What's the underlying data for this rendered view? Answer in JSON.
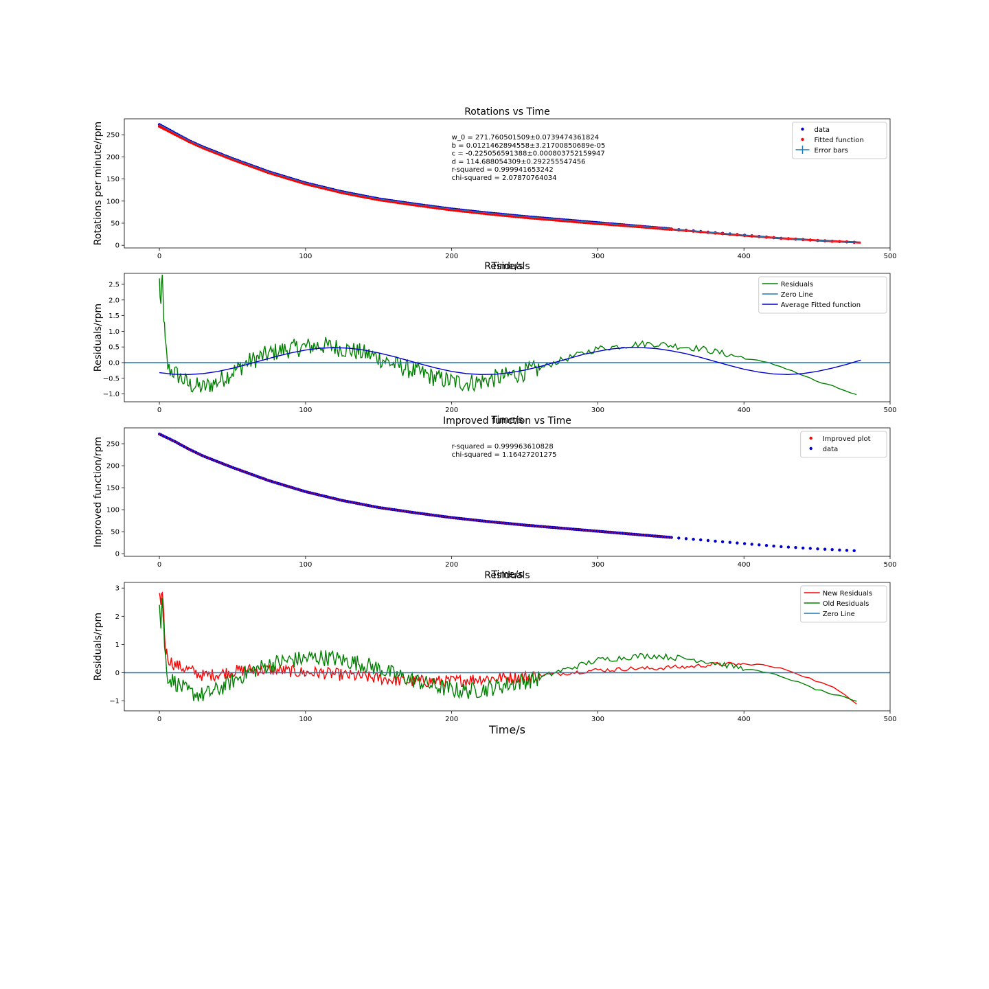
{
  "chart_data": [
    {
      "type": "scatter",
      "title": "Rotations vs Time",
      "xlabel": "Time/s",
      "ylabel": "Rotations per minute/rpm",
      "xlim": [
        -24,
        500
      ],
      "ylim": [
        -6,
        286
      ],
      "xticks": [
        0,
        100,
        200,
        300,
        400,
        500
      ],
      "yticks": [
        0,
        50,
        100,
        150,
        200,
        250
      ],
      "legend_position": "top-right",
      "legend": [
        {
          "label": "data",
          "marker": "dot",
          "color": "#0000cc"
        },
        {
          "label": "Fitted function",
          "marker": "dot",
          "color": "#ff0000"
        },
        {
          "label": "Error bars",
          "marker": "errorbar",
          "color": "#1f77b4"
        }
      ],
      "annotation": [
        "w_0 = 271.760501509±0.0739474361824",
        "b = 0.0121462894558±3.21700850689e-05",
        "c = -0.225056591388±0.000803752159947",
        "d = 114.688054309±0.292255547456",
        "r-squared = 0.999941653242",
        "chi-squared = 2.07870764034"
      ],
      "series": [
        {
          "name": "data",
          "x": [
            0,
            10,
            20,
            30,
            50,
            75,
            100,
            125,
            150,
            175,
            200,
            225,
            250,
            275,
            300,
            325,
            350,
            375,
            400,
            425,
            450,
            480
          ],
          "values": [
            273,
            255,
            237,
            222,
            196,
            166,
            141,
            121,
            105,
            93,
            82,
            73,
            65,
            58,
            51,
            44,
            37,
            30,
            23,
            16,
            11,
            6
          ]
        },
        {
          "name": "Fitted function",
          "x": [
            0,
            10,
            20,
            30,
            50,
            75,
            100,
            125,
            150,
            175,
            200,
            225,
            250,
            275,
            300,
            325,
            350,
            375,
            400,
            425,
            450,
            480
          ],
          "values": [
            269,
            252,
            235,
            220,
            194,
            164,
            139,
            119,
            103,
            91,
            80,
            71,
            63,
            56,
            49,
            43,
            36,
            29,
            22,
            16,
            11,
            6
          ]
        }
      ]
    },
    {
      "type": "line",
      "title": "Residuals",
      "xlabel": "Time/s",
      "ylabel": "Residuals/rpm",
      "xlim": [
        -24,
        500
      ],
      "ylim": [
        -1.25,
        2.85
      ],
      "xticks": [
        0,
        100,
        200,
        300,
        400,
        500
      ],
      "yticks": [
        -1.0,
        -0.5,
        0.0,
        0.5,
        1.0,
        1.5,
        2.0,
        2.5
      ],
      "ytick_labels": [
        "−1.0",
        "−0.5",
        "0.0",
        "0.5",
        "1.0",
        "1.5",
        "2.0",
        "2.5"
      ],
      "legend_position": "top-right",
      "legend": [
        {
          "label": "Residuals",
          "color": "#008000"
        },
        {
          "label": "Zero Line",
          "color": "#1f77b4"
        },
        {
          "label": "Average Fitted function",
          "color": "#0000cc"
        }
      ],
      "series": [
        {
          "name": "Residuals",
          "x": [
            0,
            1,
            2,
            3,
            4,
            6,
            10,
            15,
            20,
            25,
            30,
            40,
            50,
            60,
            70,
            80,
            90,
            100,
            110,
            120,
            130,
            140,
            150,
            160,
            170,
            180,
            190,
            200,
            210,
            220,
            230,
            240,
            250,
            260,
            270,
            280,
            290,
            300,
            310,
            320,
            330,
            340,
            350,
            360,
            370,
            380,
            390,
            400,
            410,
            420,
            430,
            440,
            450,
            460,
            470,
            480
          ],
          "values": [
            2.6,
            1.8,
            2.7,
            1.5,
            0.6,
            -0.2,
            -0.3,
            -0.5,
            -0.7,
            -0.75,
            -0.8,
            -0.6,
            -0.3,
            0.0,
            0.2,
            0.35,
            0.45,
            0.5,
            0.55,
            0.5,
            0.4,
            0.3,
            0.15,
            -0.05,
            -0.2,
            -0.35,
            -0.5,
            -0.6,
            -0.65,
            -0.6,
            -0.5,
            -0.4,
            -0.3,
            -0.2,
            0.0,
            0.15,
            0.3,
            0.45,
            0.5,
            0.55,
            0.6,
            0.6,
            0.55,
            0.5,
            0.45,
            0.35,
            0.25,
            0.15,
            0.05,
            -0.05,
            -0.2,
            -0.4,
            -0.6,
            -0.75,
            -0.9,
            -1.1
          ]
        },
        {
          "name": "Zero Line",
          "x": [
            -24,
            500
          ],
          "values": [
            0,
            0
          ]
        },
        {
          "name": "Average Fitted function",
          "x": [
            0,
            10,
            20,
            30,
            40,
            50,
            60,
            70,
            80,
            90,
            100,
            110,
            120,
            130,
            140,
            150,
            160,
            170,
            180,
            190,
            200,
            210,
            220,
            230,
            240,
            250,
            260,
            270,
            280,
            290,
            300,
            310,
            320,
            330,
            340,
            350,
            360,
            370,
            380,
            390,
            400,
            410,
            420,
            430,
            440,
            450,
            460,
            470,
            480
          ],
          "values": [
            -0.32,
            -0.37,
            -0.38,
            -0.35,
            -0.28,
            -0.18,
            -0.06,
            0.07,
            0.2,
            0.31,
            0.4,
            0.46,
            0.48,
            0.46,
            0.4,
            0.31,
            0.2,
            0.07,
            -0.06,
            -0.18,
            -0.28,
            -0.35,
            -0.38,
            -0.37,
            -0.32,
            -0.24,
            -0.13,
            0.0,
            0.13,
            0.26,
            0.36,
            0.44,
            0.48,
            0.48,
            0.45,
            0.38,
            0.29,
            0.17,
            0.04,
            -0.09,
            -0.21,
            -0.3,
            -0.36,
            -0.38,
            -0.35,
            -0.28,
            -0.18,
            -0.06,
            0.08
          ]
        }
      ]
    },
    {
      "type": "scatter",
      "title": "Improved function vs Time",
      "xlabel": "Time/s",
      "ylabel": "Improved function/rpm",
      "xlim": [
        -24,
        500
      ],
      "ylim": [
        -6,
        286
      ],
      "xticks": [
        0,
        100,
        200,
        300,
        400,
        500
      ],
      "yticks": [
        0,
        50,
        100,
        150,
        200,
        250
      ],
      "legend_position": "top-right",
      "legend": [
        {
          "label": "Improved plot",
          "marker": "dot",
          "color": "#ff0000"
        },
        {
          "label": "data",
          "marker": "dot",
          "color": "#0000cc"
        }
      ],
      "annotation": [
        "r-squared = 0.999963610828",
        "chi-squared = 1.16427201275"
      ],
      "series": [
        {
          "name": "data",
          "x": [
            0,
            10,
            20,
            30,
            50,
            75,
            100,
            125,
            150,
            175,
            200,
            225,
            250,
            275,
            300,
            325,
            350,
            375,
            400,
            425,
            450,
            480
          ],
          "values": [
            272,
            256,
            238,
            222,
            196,
            166,
            141,
            121,
            105,
            93,
            82,
            73,
            65,
            58,
            51,
            44,
            37,
            30,
            23,
            16,
            11,
            6
          ]
        }
      ]
    },
    {
      "type": "line",
      "title": "Residuals",
      "xlabel": "Time/s",
      "ylabel": "Residuals/rpm",
      "xlim": [
        -24,
        500
      ],
      "ylim": [
        -1.35,
        3.2
      ],
      "xticks": [
        0,
        100,
        200,
        300,
        400,
        500
      ],
      "yticks": [
        -1,
        0,
        1,
        2,
        3
      ],
      "ytick_labels": [
        "−1",
        "0",
        "1",
        "2",
        "3"
      ],
      "legend_position": "top-right",
      "legend": [
        {
          "label": "New Residuals",
          "color": "#ff0000"
        },
        {
          "label": "Old Residuals",
          "color": "#008000"
        },
        {
          "label": "Zero Line",
          "color": "#1f77b4"
        }
      ],
      "series": [
        {
          "name": "New Residuals",
          "x": [
            0,
            1,
            2,
            3,
            4,
            6,
            10,
            15,
            20,
            30,
            40,
            50,
            60,
            70,
            80,
            90,
            100,
            110,
            120,
            130,
            140,
            150,
            160,
            170,
            180,
            190,
            200,
            210,
            220,
            230,
            240,
            250,
            260,
            270,
            280,
            290,
            300,
            310,
            320,
            330,
            340,
            350,
            360,
            370,
            380,
            390,
            400,
            410,
            420,
            430,
            440,
            450,
            460,
            470,
            480
          ],
          "values": [
            2.8,
            2.2,
            3.0,
            2.0,
            0.9,
            0.5,
            0.3,
            0.2,
            0.1,
            -0.1,
            -0.05,
            0.05,
            0.1,
            0.1,
            0.1,
            0.05,
            0.0,
            0.0,
            -0.05,
            -0.1,
            -0.15,
            -0.2,
            -0.25,
            -0.3,
            -0.3,
            -0.3,
            -0.3,
            -0.25,
            -0.2,
            -0.2,
            -0.15,
            -0.15,
            -0.1,
            -0.05,
            0.0,
            0.05,
            0.1,
            0.1,
            0.15,
            0.15,
            0.15,
            0.2,
            0.2,
            0.25,
            0.3,
            0.3,
            0.3,
            0.3,
            0.2,
            0.1,
            -0.1,
            -0.3,
            -0.5,
            -0.8,
            -1.2
          ]
        },
        {
          "name": "Old Residuals",
          "x": [
            0,
            1,
            2,
            3,
            4,
            6,
            10,
            15,
            20,
            25,
            30,
            40,
            50,
            60,
            70,
            80,
            90,
            100,
            110,
            120,
            130,
            140,
            150,
            160,
            170,
            180,
            190,
            200,
            210,
            220,
            230,
            240,
            250,
            260,
            270,
            280,
            290,
            300,
            310,
            320,
            330,
            340,
            350,
            360,
            370,
            380,
            390,
            400,
            410,
            420,
            430,
            440,
            450,
            460,
            470,
            480
          ],
          "values": [
            2.6,
            1.8,
            2.7,
            1.5,
            0.6,
            -0.2,
            -0.3,
            -0.5,
            -0.7,
            -0.75,
            -0.8,
            -0.6,
            -0.3,
            0.0,
            0.2,
            0.35,
            0.45,
            0.5,
            0.55,
            0.5,
            0.4,
            0.3,
            0.15,
            -0.05,
            -0.2,
            -0.35,
            -0.5,
            -0.6,
            -0.65,
            -0.6,
            -0.5,
            -0.4,
            -0.3,
            -0.2,
            0.0,
            0.15,
            0.3,
            0.45,
            0.5,
            0.55,
            0.6,
            0.6,
            0.55,
            0.5,
            0.45,
            0.35,
            0.25,
            0.15,
            0.05,
            -0.05,
            -0.2,
            -0.4,
            -0.6,
            -0.75,
            -0.9,
            -1.1
          ]
        },
        {
          "name": "Zero Line",
          "x": [
            -24,
            500
          ],
          "values": [
            0,
            0
          ]
        }
      ]
    }
  ]
}
